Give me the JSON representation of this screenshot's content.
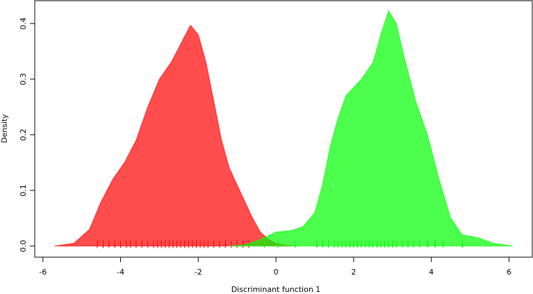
{
  "chart_data": {
    "type": "density",
    "x_label": "Discriminant function 1",
    "y_label": "Density",
    "xlim": [
      -6.21,
      6.6
    ],
    "ylim": [
      -0.02,
      0.441
    ],
    "xticks": [
      -6,
      -4,
      -2,
      0,
      2,
      4,
      6
    ],
    "yticks": [
      {
        "value": 0,
        "label": "0.0"
      },
      0.1,
      0.2,
      0.3,
      0.4
    ],
    "alpha": 0.7,
    "series": [
      {
        "color": "#ff0000",
        "x": [
          -5.7,
          -5.2,
          -4.8,
          -4.5,
          -4.2,
          -3.9,
          -3.6,
          -3.3,
          -3.0,
          -2.7,
          -2.4,
          -2.2,
          -2.0,
          -1.8,
          -1.6,
          -1.4,
          -1.2,
          -1.0,
          -0.8,
          -0.6,
          -0.4,
          -0.2,
          0,
          0.3,
          0.5
        ],
        "values": [
          0,
          0.005,
          0.03,
          0.08,
          0.12,
          0.15,
          0.19,
          0.25,
          0.3,
          0.33,
          0.37,
          0.397,
          0.38,
          0.33,
          0.26,
          0.19,
          0.14,
          0.11,
          0.08,
          0.05,
          0.025,
          0.012,
          0.005,
          0.001,
          0
        ],
        "rug": [
          -4.6,
          -4.45,
          -4.3,
          -4.15,
          -4.0,
          -3.85,
          -3.75,
          -3.6,
          -3.45,
          -3.3,
          -3.15,
          -3.05,
          -2.95,
          -2.85,
          -2.75,
          -2.65,
          -2.55,
          -2.45,
          -2.35,
          -2.25,
          -2.15,
          -2.05,
          -1.95,
          -1.85,
          -1.75,
          -1.6,
          -1.45,
          -1.3,
          -1.15,
          -1.0,
          -0.85,
          -0.7
        ]
      },
      {
        "color": "#00ff00",
        "x": [
          -1.2,
          -0.8,
          -0.4,
          0,
          0.4,
          0.7,
          1.0,
          1.2,
          1.4,
          1.6,
          1.8,
          2.2,
          2.5,
          2.7,
          2.9,
          3.1,
          3.3,
          3.6,
          3.9,
          4.2,
          4.5,
          4.8,
          5.2,
          5.6,
          6.1
        ],
        "values": [
          0,
          0.002,
          0.012,
          0.025,
          0.028,
          0.035,
          0.06,
          0.11,
          0.18,
          0.23,
          0.27,
          0.3,
          0.33,
          0.38,
          0.423,
          0.4,
          0.34,
          0.26,
          0.2,
          0.12,
          0.05,
          0.02,
          0.015,
          0.005,
          0
        ],
        "rug": [
          -0.3,
          0.05,
          0.5,
          1.05,
          1.2,
          1.35,
          1.5,
          1.6,
          1.7,
          1.8,
          1.9,
          2.0,
          2.1,
          2.2,
          2.3,
          2.4,
          2.5,
          2.6,
          2.7,
          2.8,
          2.9,
          3.0,
          3.1,
          3.25,
          3.4,
          3.55,
          3.7,
          3.9,
          4.1,
          4.3,
          4.8
        ]
      }
    ]
  }
}
